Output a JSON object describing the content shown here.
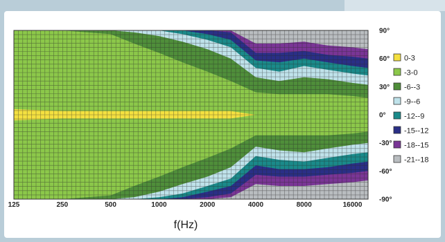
{
  "chart_data": {
    "type": "heatmap",
    "title": "",
    "xlabel": "f(Hz)",
    "ylabel": "",
    "x_scale": "log2",
    "x_range_hz": [
      125,
      20000
    ],
    "x_ticks": [
      "125",
      "250",
      "500",
      "1000",
      "2000",
      "4000",
      "8000",
      "16000"
    ],
    "y_range_deg": [
      -90,
      90
    ],
    "y_ticks": [
      "90°",
      "60°",
      "30°",
      "0°",
      "-30°",
      "-60°",
      "-90°"
    ],
    "grid": true,
    "legend_position": "right",
    "levels": [
      {
        "label": "0-3",
        "color": "#f4e040"
      },
      {
        "label": "-3-0",
        "color": "#8cc84a"
      },
      {
        "label": "-6--3",
        "color": "#4f8e3a"
      },
      {
        "label": "-9--6",
        "color": "#bfe2ea"
      },
      {
        "label": "-12--9",
        "color": "#1a8a8a"
      },
      {
        "label": "-15--12",
        "color": "#2a2f86"
      },
      {
        "label": "-18--15",
        "color": "#7a3596"
      },
      {
        "label": "-21--18",
        "color": "#b9bdc0"
      }
    ],
    "contours_deg": {
      "freq_hz": [
        125,
        250,
        500,
        700,
        1000,
        1400,
        2000,
        2800,
        4000,
        5600,
        8000,
        11200,
        16000,
        20000
      ],
      "upper": {
        "-3": [
          90,
          90,
          86,
          76,
          66,
          56,
          46,
          36,
          24,
          22,
          22,
          22,
          20,
          18
        ],
        "-6": [
          90,
          90,
          90,
          88,
          84,
          78,
          70,
          60,
          40,
          36,
          40,
          38,
          34,
          32
        ],
        "-9": [
          90,
          90,
          90,
          90,
          90,
          86,
          80,
          72,
          50,
          46,
          52,
          48,
          44,
          42
        ],
        "-12": [
          90,
          90,
          90,
          90,
          90,
          90,
          86,
          80,
          58,
          56,
          60,
          56,
          52,
          50
        ],
        "-15": [
          90,
          90,
          90,
          90,
          90,
          90,
          90,
          88,
          66,
          66,
          68,
          64,
          62,
          60
        ],
        "-18": [
          90,
          90,
          90,
          90,
          90,
          90,
          90,
          90,
          76,
          76,
          78,
          74,
          72,
          70
        ]
      },
      "lower": {
        "-3": [
          -90,
          -90,
          -86,
          -76,
          -66,
          -56,
          -46,
          -36,
          -22,
          -22,
          -22,
          -22,
          -20,
          -18
        ],
        "-6": [
          -90,
          -90,
          -90,
          -88,
          -82,
          -74,
          -66,
          -56,
          -34,
          -38,
          -40,
          -36,
          -32,
          -30
        ],
        "-9": [
          -90,
          -90,
          -90,
          -90,
          -88,
          -84,
          -76,
          -68,
          -44,
          -48,
          -50,
          -46,
          -42,
          -40
        ],
        "-12": [
          -90,
          -90,
          -90,
          -90,
          -90,
          -88,
          -82,
          -76,
          -54,
          -58,
          -58,
          -56,
          -52,
          -50
        ],
        "-15": [
          -90,
          -90,
          -90,
          -90,
          -90,
          -90,
          -88,
          -84,
          -64,
          -66,
          -66,
          -64,
          -62,
          -60
        ],
        "-18": [
          -90,
          -90,
          -90,
          -90,
          -90,
          -90,
          -90,
          -88,
          -74,
          -76,
          -76,
          -74,
          -72,
          -70
        ]
      },
      "near_zero_max_deg": [
        6,
        4,
        4,
        4,
        4,
        4,
        4,
        4,
        0,
        0,
        0,
        0,
        0,
        0
      ]
    }
  }
}
